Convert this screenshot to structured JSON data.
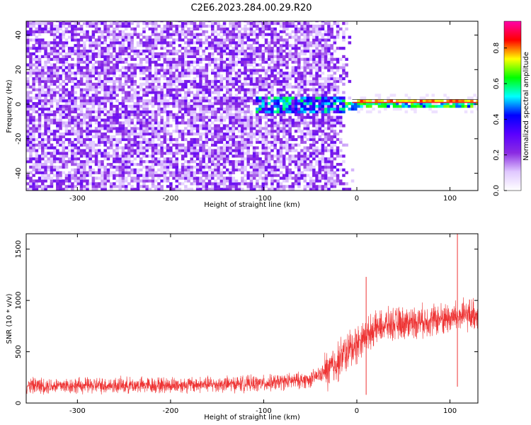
{
  "title": "C2E6.2023.284.00.29.R20",
  "chart_data": [
    {
      "type": "heatmap",
      "xlabel": "Height of straight line (km)",
      "ylabel": "Frequency (Hz)",
      "xlim": [
        -355,
        130
      ],
      "ylim": [
        -50,
        48
      ],
      "x_ticks": [
        -300,
        -200,
        -100,
        0,
        100
      ],
      "y_ticks": [
        -40,
        -20,
        0,
        20,
        40
      ],
      "colorbar": {
        "label": "Normalized spectral amplitude",
        "range": [
          0,
          0.95
        ],
        "ticks": [
          0.0,
          0.2,
          0.4,
          0.6,
          0.8
        ],
        "tick_labels": [
          "0.0",
          "0.2",
          "0.4",
          "0.6",
          "0.8"
        ],
        "colormap": [
          "#ffffff",
          "#e0c8ff",
          "#8a2be2",
          "#5a00ff",
          "#0000ff",
          "#00ffff",
          "#00ff00",
          "#ffff00",
          "#ff0000",
          "#ff00aa"
        ]
      },
      "regions": {
        "noise_extent_x": [
          -355,
          -30
        ],
        "noise_level": 0.22,
        "transition_x": [
          -110,
          -15
        ],
        "signal_x": [
          -15,
          130
        ],
        "signal_frequency": [
          -2,
          2
        ],
        "signal_level": 0.85
      }
    },
    {
      "type": "line",
      "xlabel": "Height of straight line (km)",
      "ylabel": "SNR (10 * v/v)",
      "xlim": [
        -355,
        130
      ],
      "ylim": [
        0,
        1650
      ],
      "x_ticks": [
        -300,
        -200,
        -100,
        0,
        100
      ],
      "y_ticks": [
        0,
        500,
        1000,
        1500
      ],
      "color": "#ee3333",
      "profile": [
        {
          "x": -355,
          "y": 170
        },
        {
          "x": -300,
          "y": 170
        },
        {
          "x": -200,
          "y": 175
        },
        {
          "x": -100,
          "y": 190
        },
        {
          "x": -50,
          "y": 230
        },
        {
          "x": -30,
          "y": 320
        },
        {
          "x": -15,
          "y": 460
        },
        {
          "x": 0,
          "y": 580
        },
        {
          "x": 15,
          "y": 700
        },
        {
          "x": 30,
          "y": 760
        },
        {
          "x": 60,
          "y": 790
        },
        {
          "x": 100,
          "y": 830
        },
        {
          "x": 130,
          "y": 870
        }
      ],
      "spikes": [
        {
          "x": 108,
          "y": 1650
        },
        {
          "x": 108,
          "y": 160
        },
        {
          "x": 10,
          "y": 1230
        },
        {
          "x": 10,
          "y": 80
        }
      ]
    }
  ]
}
